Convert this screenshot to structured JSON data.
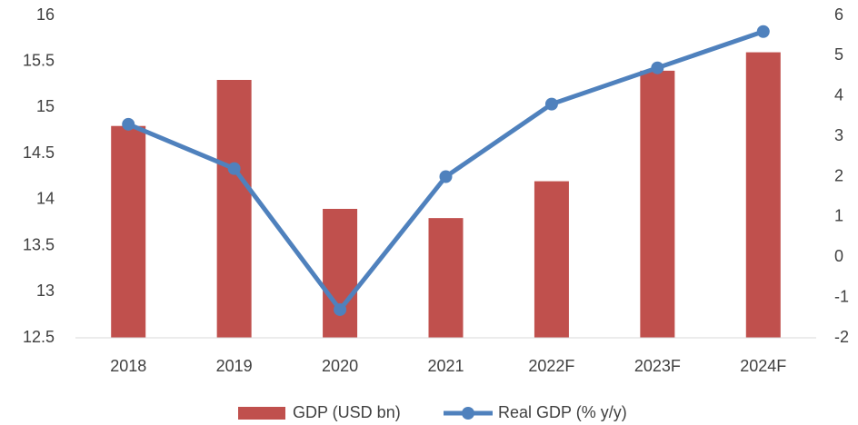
{
  "chart_data": {
    "type": "bar_line",
    "categories": [
      "2018",
      "2019",
      "2020",
      "2021",
      "2022F",
      "2023F",
      "2024F"
    ],
    "series": [
      {
        "name": "GDP (USD bn)",
        "type": "bar",
        "color": "#c0504d",
        "values": [
          14.8,
          15.3,
          13.9,
          13.8,
          14.2,
          15.4,
          15.6
        ]
      },
      {
        "name": "Real GDP (% y/y)",
        "type": "line",
        "axis": "y2",
        "color": "#4f81bd",
        "values": [
          3.3,
          2.2,
          -1.3,
          2.0,
          3.8,
          4.7,
          5.6
        ]
      }
    ],
    "ylim": [
      12.5,
      16
    ],
    "yticks": [
      12.5,
      13,
      13.5,
      14,
      14.5,
      15,
      15.5,
      16
    ],
    "y2lim": [
      -2,
      6
    ],
    "y2ticks": [
      -2,
      -1,
      0,
      1,
      2,
      3,
      4,
      5,
      6
    ],
    "legend": "bottom"
  }
}
